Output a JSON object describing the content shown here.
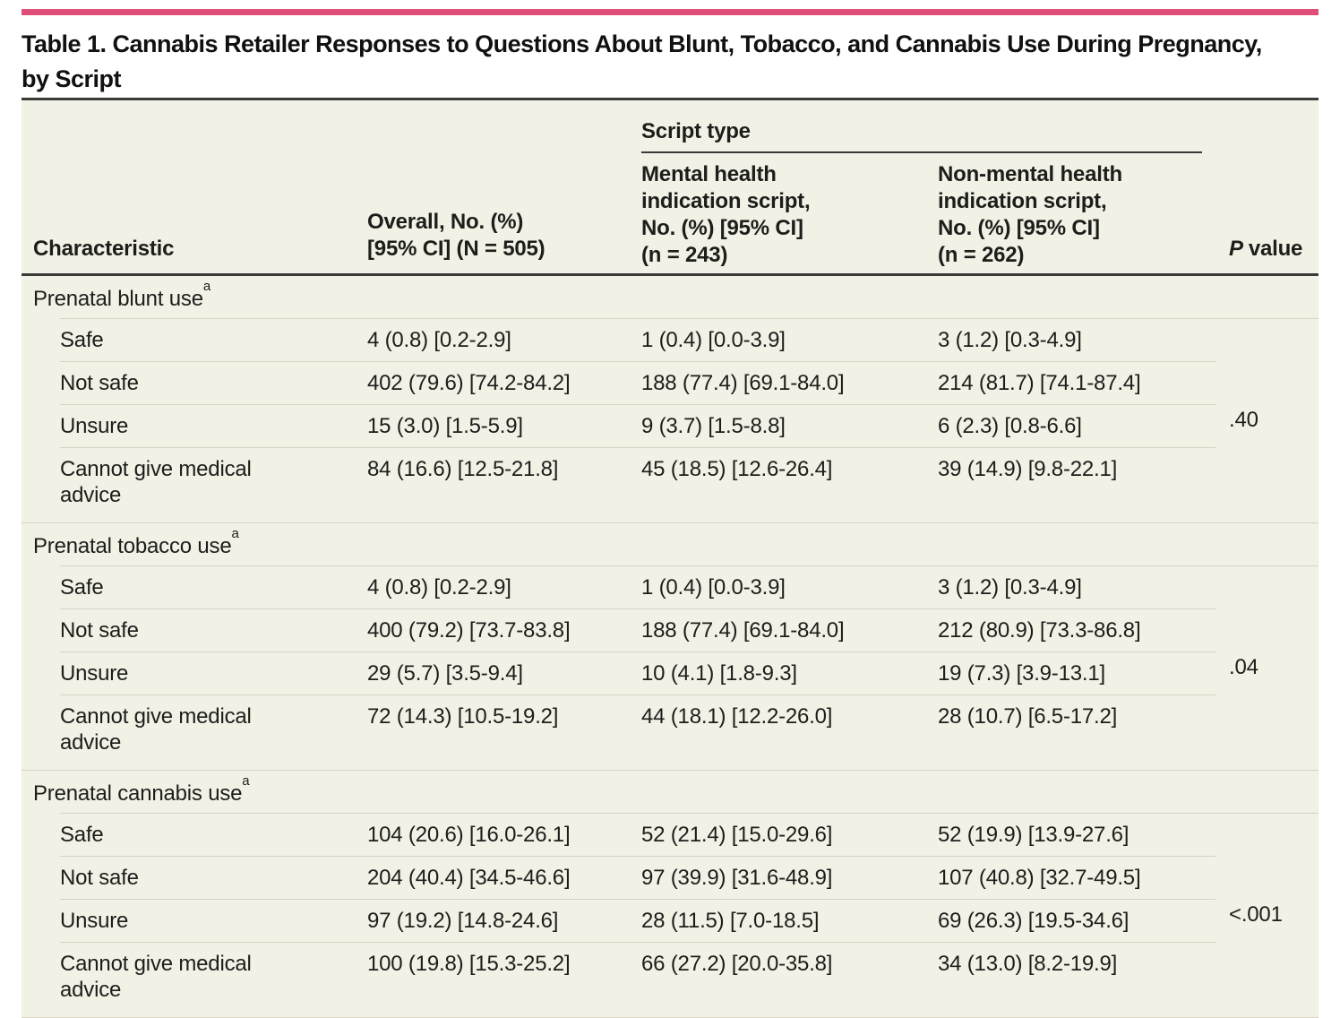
{
  "colors": {
    "accent_pink": "#df4d79",
    "table_bg": "#f2f1e6",
    "hairline": "#d6d3c4",
    "rule_dark": "#3a3a37",
    "text": "#1d1d1a"
  },
  "title": "Table 1. Cannabis Retailer Responses to Questions About Blunt, Tobacco, and Cannabis Use During Pregnancy,\nby Script",
  "header": {
    "characteristic": "Characteristic",
    "overall": "Overall, No. (%)\n[95% CI] (N = 505)",
    "script_type": "Script type",
    "mental": "Mental health\nindication script,\nNo. (%) [95% CI]\n(n = 243)",
    "non_mental": "Non-mental health\nindication script,\nNo. (%) [95% CI]\n(n = 262)",
    "p_italic": "P",
    "p_rest": "value"
  },
  "sections": [
    {
      "label": "Prenatal blunt use",
      "sup": "a",
      "p_value": ".40",
      "rows": [
        {
          "label": "Safe",
          "overall": "4 (0.8) [0.2-2.9]",
          "mental": "1 (0.4) [0.0-3.9]",
          "non_mental": "3 (1.2) [0.3-4.9]"
        },
        {
          "label": "Not safe",
          "overall": "402 (79.6) [74.2-84.2]",
          "mental": "188 (77.4) [69.1-84.0]",
          "non_mental": "214 (81.7) [74.1-87.4]"
        },
        {
          "label": "Unsure",
          "overall": "15 (3.0) [1.5-5.9]",
          "mental": "9 (3.7) [1.5-8.8]",
          "non_mental": "6 (2.3) [0.8-6.6]"
        },
        {
          "label": "Cannot give medical\nadvice",
          "overall": "84 (16.6) [12.5-21.8]",
          "mental": "45 (18.5) [12.6-26.4]",
          "non_mental": "39 (14.9) [9.8-22.1]"
        }
      ]
    },
    {
      "label": "Prenatal tobacco use",
      "sup": "a",
      "p_value": ".04",
      "rows": [
        {
          "label": "Safe",
          "overall": "4 (0.8) [0.2-2.9]",
          "mental": "1 (0.4) [0.0-3.9]",
          "non_mental": "3 (1.2) [0.3-4.9]"
        },
        {
          "label": "Not safe",
          "overall": "400 (79.2) [73.7-83.8]",
          "mental": "188 (77.4) [69.1-84.0]",
          "non_mental": "212 (80.9) [73.3-86.8]"
        },
        {
          "label": "Unsure",
          "overall": "29 (5.7) [3.5-9.4]",
          "mental": "10 (4.1) [1.8-9.3]",
          "non_mental": "19 (7.3) [3.9-13.1]"
        },
        {
          "label": "Cannot give medical\nadvice",
          "overall": "72 (14.3) [10.5-19.2]",
          "mental": "44 (18.1) [12.2-26.0]",
          "non_mental": "28 (10.7) [6.5-17.2]"
        }
      ]
    },
    {
      "label": "Prenatal cannabis use",
      "sup": "a",
      "p_value": "<.001",
      "rows": [
        {
          "label": "Safe",
          "overall": "104 (20.6) [16.0-26.1]",
          "mental": "52 (21.4) [15.0-29.6]",
          "non_mental": "52 (19.9) [13.9-27.6]"
        },
        {
          "label": "Not safe",
          "overall": "204 (40.4) [34.5-46.6]",
          "mental": "97 (39.9) [31.6-48.9]",
          "non_mental": "107 (40.8) [32.7-49.5]"
        },
        {
          "label": "Unsure",
          "overall": "97 (19.2) [14.8-24.6]",
          "mental": "28 (11.5) [7.0-18.5]",
          "non_mental": "69 (26.3) [19.5-34.6]"
        },
        {
          "label": "Cannot give medical\nadvice",
          "overall": "100 (19.8) [15.3-25.2]",
          "mental": "66 (27.2) [20.0-35.8]",
          "non_mental": "34 (13.0) [8.2-19.9]"
        }
      ]
    }
  ]
}
